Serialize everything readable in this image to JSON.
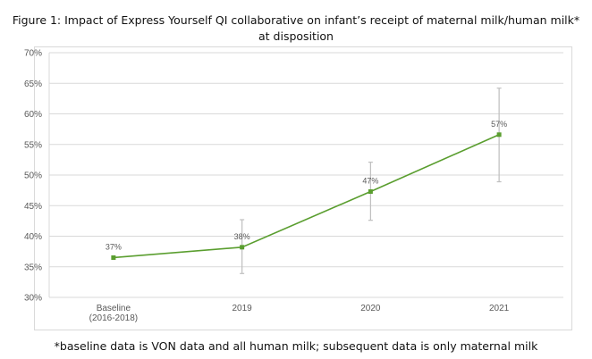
{
  "title": {
    "line1": "Figure 1: Impact of Express Yourself QI collaborative on infant’s receipt of maternal milk/human milk*",
    "line2": "at disposition"
  },
  "footnote": "*baseline data is VON data and all human milk; subsequent data is only maternal milk",
  "chart_data": {
    "type": "line",
    "title": "Figure 1: Impact of Express Yourself QI collaborative on infant’s receipt of maternal milk/human milk* at disposition",
    "categories": [
      [
        "Baseline",
        "(2016-2018)"
      ],
      [
        "2019"
      ],
      [
        "2020"
      ],
      [
        "2021"
      ]
    ],
    "series": [
      {
        "values": [
          36.5,
          38.2,
          47.3,
          56.6
        ],
        "labels": [
          "37%",
          "38%",
          "47%",
          "57%"
        ],
        "error_low": [
          null,
          33.9,
          42.6,
          48.9
        ],
        "error_high": [
          null,
          42.7,
          52.1,
          64.2
        ]
      }
    ],
    "y_ticks": [
      "30%",
      "35%",
      "40%",
      "45%",
      "50%",
      "55%",
      "60%",
      "65%",
      "70%"
    ],
    "ylim": [
      30,
      70
    ],
    "grid": true,
    "colors": {
      "line": "#5a9e2f",
      "error_bar": "#bfbfbf",
      "grid": "#d9d9d9"
    }
  }
}
